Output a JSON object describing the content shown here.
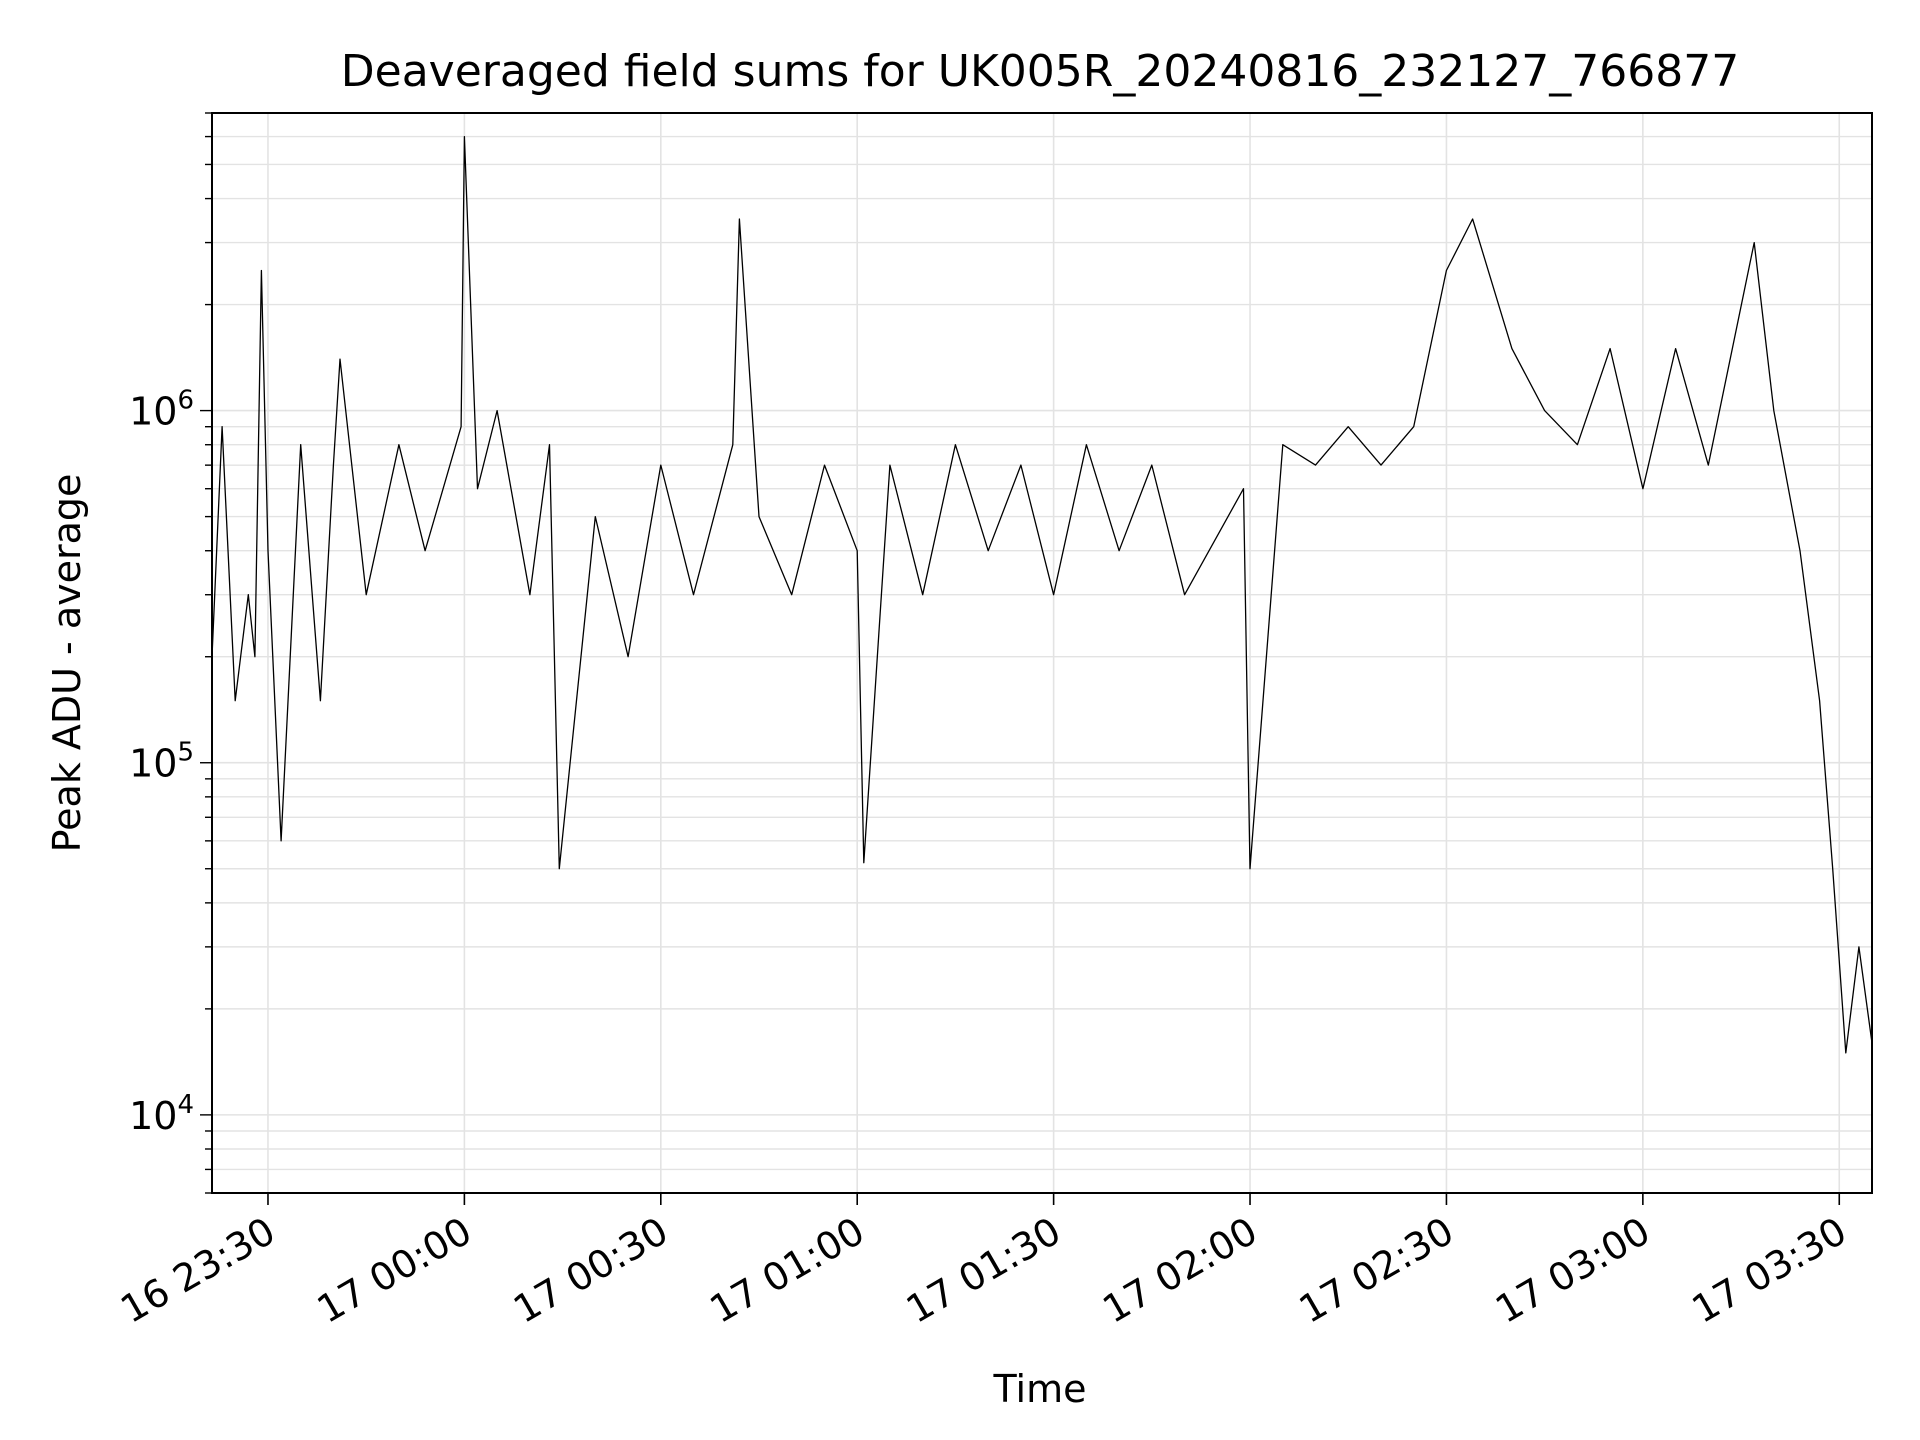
{
  "chart_data": {
    "type": "line",
    "title": "Deaveraged field sums for UK005R_20240816_232127_766877",
    "xlabel": "Time",
    "ylabel": "Peak ADU - average",
    "x_start": "16 23:21:27",
    "x_end": "17 03:35:00",
    "xlim": [
      "16 23:21:27",
      "17 03:35:00"
    ],
    "ylim": [
      6000,
      7000000
    ],
    "yscale": "log",
    "grid": true,
    "line_color": "#000000",
    "x_ticks": [
      {
        "t": "16 23:30:00",
        "label": "16 23:30"
      },
      {
        "t": "17 00:00:00",
        "label": "17 00:00"
      },
      {
        "t": "17 00:30:00",
        "label": "17 00:30"
      },
      {
        "t": "17 01:00:00",
        "label": "17 01:00"
      },
      {
        "t": "17 01:30:00",
        "label": "17 01:30"
      },
      {
        "t": "17 02:00:00",
        "label": "17 02:00"
      },
      {
        "t": "17 02:30:00",
        "label": "17 02:30"
      },
      {
        "t": "17 03:00:00",
        "label": "17 03:00"
      },
      {
        "t": "17 03:30:00",
        "label": "17 03:30"
      }
    ],
    "y_ticks": [
      {
        "value": 10000,
        "base": "10",
        "exp": "4"
      },
      {
        "value": 100000,
        "base": "10",
        "exp": "5"
      },
      {
        "value": 1000000,
        "base": "10",
        "exp": "6"
      }
    ],
    "series": [
      {
        "x": [
          "16 23:21:27",
          "16 23:23:00",
          "16 23:25:00",
          "16 23:27:00",
          "16 23:28:00",
          "16 23:29:00",
          "16 23:30:00",
          "16 23:32:00",
          "16 23:35:00",
          "16 23:38:00",
          "16 23:40:00",
          "16 23:41:00",
          "16 23:45:00",
          "16 23:50:00",
          "16 23:54:00",
          "16 23:59:30",
          "17 00:00:00",
          "17 00:02:00",
          "17 00:05:00",
          "17 00:10:00",
          "17 00:13:00",
          "17 00:14:30",
          "17 00:20:00",
          "17 00:25:00",
          "17 00:30:00",
          "17 00:35:00",
          "17 00:41:00",
          "17 00:42:00",
          "17 00:45:00",
          "17 00:50:00",
          "17 00:55:00",
          "17 01:00:00",
          "17 01:01:00",
          "17 01:05:00",
          "17 01:10:00",
          "17 01:15:00",
          "17 01:20:00",
          "17 01:25:00",
          "17 01:30:00",
          "17 01:35:00",
          "17 01:40:00",
          "17 01:45:00",
          "17 01:50:00",
          "17 01:59:00",
          "17 02:00:00",
          "17 02:05:00",
          "17 02:10:00",
          "17 02:15:00",
          "17 02:20:00",
          "17 02:25:00",
          "17 02:30:00",
          "17 02:34:00",
          "17 02:40:00",
          "17 02:45:00",
          "17 02:50:00",
          "17 02:55:00",
          "17 03:00:00",
          "17 03:05:00",
          "17 03:10:00",
          "17 03:17:00",
          "17 03:20:00",
          "17 03:24:00",
          "17 03:27:00",
          "17 03:29:00",
          "17 03:31:00",
          "17 03:33:00",
          "17 03:35:00"
        ],
        "y": [
          200000,
          900000,
          150000,
          300000,
          200000,
          2500000,
          400000,
          60000,
          800000,
          150000,
          700000,
          1400000,
          300000,
          800000,
          400000,
          900000,
          6000000,
          600000,
          1000000,
          300000,
          800000,
          50000,
          500000,
          200000,
          700000,
          300000,
          800000,
          3500000,
          500000,
          300000,
          700000,
          400000,
          52000,
          700000,
          300000,
          800000,
          400000,
          700000,
          300000,
          800000,
          400000,
          700000,
          300000,
          600000,
          50000,
          800000,
          700000,
          900000,
          700000,
          900000,
          2500000,
          3500000,
          1500000,
          1000000,
          800000,
          1500000,
          600000,
          1500000,
          700000,
          3000000,
          1000000,
          400000,
          150000,
          50000,
          15000,
          30000,
          16000
        ]
      }
    ]
  }
}
